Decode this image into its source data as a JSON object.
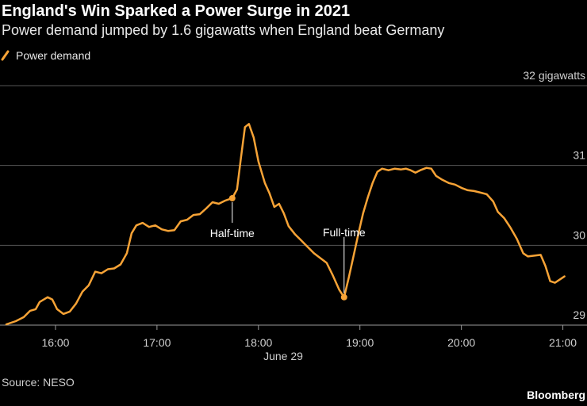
{
  "chart_data": {
    "type": "line",
    "title": "England's Win Sparked a Power Surge in 2021",
    "subtitle": "Power demand jumped by 1.6 gigawatts when England beat Germany",
    "xlabel": "June 29",
    "source": "Source: NESO",
    "credit": "Bloomberg",
    "x": [
      15.516,
      15.609,
      15.688,
      15.75,
      15.805,
      15.844,
      15.883,
      15.922,
      15.969,
      16.016,
      16.078,
      16.141,
      16.203,
      16.266,
      16.328,
      16.391,
      16.453,
      16.516,
      16.578,
      16.641,
      16.703,
      16.75,
      16.797,
      16.859,
      16.922,
      16.984,
      17.047,
      17.109,
      17.172,
      17.234,
      17.297,
      17.359,
      17.422,
      17.484,
      17.547,
      17.609,
      17.672,
      17.742,
      17.789,
      17.828,
      17.867,
      17.906,
      17.953,
      18.0,
      18.063,
      18.109,
      18.156,
      18.203,
      18.25,
      18.297,
      18.359,
      18.422,
      18.484,
      18.547,
      18.609,
      18.672,
      18.734,
      18.797,
      18.844,
      18.891,
      18.938,
      18.984,
      19.031,
      19.078,
      19.125,
      19.172,
      19.219,
      19.281,
      19.344,
      19.406,
      19.453,
      19.5,
      19.547,
      19.594,
      19.656,
      19.703,
      19.75,
      19.813,
      19.875,
      19.938,
      20.0,
      20.063,
      20.125,
      20.188,
      20.25,
      20.313,
      20.359,
      20.422,
      20.484,
      20.547,
      20.609,
      20.656,
      20.719,
      20.781,
      20.828,
      20.875,
      20.922,
      20.969,
      21.016
    ],
    "series": [
      {
        "name": "Power demand",
        "color": "#f7a336",
        "values": [
          29.01,
          29.05,
          29.1,
          29.18,
          29.2,
          29.29,
          29.32,
          29.35,
          29.32,
          29.2,
          29.14,
          29.17,
          29.27,
          29.42,
          29.5,
          29.67,
          29.65,
          29.7,
          29.71,
          29.76,
          29.9,
          30.15,
          30.25,
          30.28,
          30.23,
          30.25,
          30.2,
          30.18,
          30.19,
          30.3,
          30.32,
          30.38,
          30.39,
          30.46,
          30.54,
          30.52,
          30.56,
          30.59,
          30.7,
          31.1,
          31.48,
          31.52,
          31.35,
          31.05,
          30.78,
          30.65,
          30.48,
          30.52,
          30.4,
          30.24,
          30.14,
          30.06,
          29.98,
          29.9,
          29.84,
          29.78,
          29.62,
          29.44,
          29.35,
          29.6,
          29.87,
          30.14,
          30.4,
          30.6,
          30.78,
          30.92,
          30.96,
          30.94,
          30.96,
          30.95,
          30.96,
          30.94,
          30.91,
          30.94,
          30.97,
          30.96,
          30.87,
          30.82,
          30.78,
          30.76,
          30.72,
          30.69,
          30.68,
          30.66,
          30.64,
          30.55,
          30.42,
          30.34,
          30.22,
          30.08,
          29.9,
          29.86,
          29.87,
          29.88,
          29.74,
          29.55,
          29.53,
          29.57,
          29.61
        ]
      }
    ],
    "annotations": [
      {
        "text": "Half-time",
        "x": 17.742,
        "y": 30.59
      },
      {
        "text": "Full-time",
        "x": 18.844,
        "y": 29.35
      }
    ],
    "xlim": [
      15.5,
      21.23
    ],
    "xticks": [
      {
        "value": 16,
        "label": "16:00"
      },
      {
        "value": 17,
        "label": "17:00"
      },
      {
        "value": 18,
        "label": "18:00"
      },
      {
        "value": 19,
        "label": "19:00"
      },
      {
        "value": 20,
        "label": "20:00"
      },
      {
        "value": 21,
        "label": "21:00"
      }
    ],
    "ylim": [
      29,
      32
    ],
    "yticks": [
      29,
      30,
      31,
      {
        "value": 32,
        "label": "32 gigawatts"
      }
    ],
    "grid": true
  }
}
